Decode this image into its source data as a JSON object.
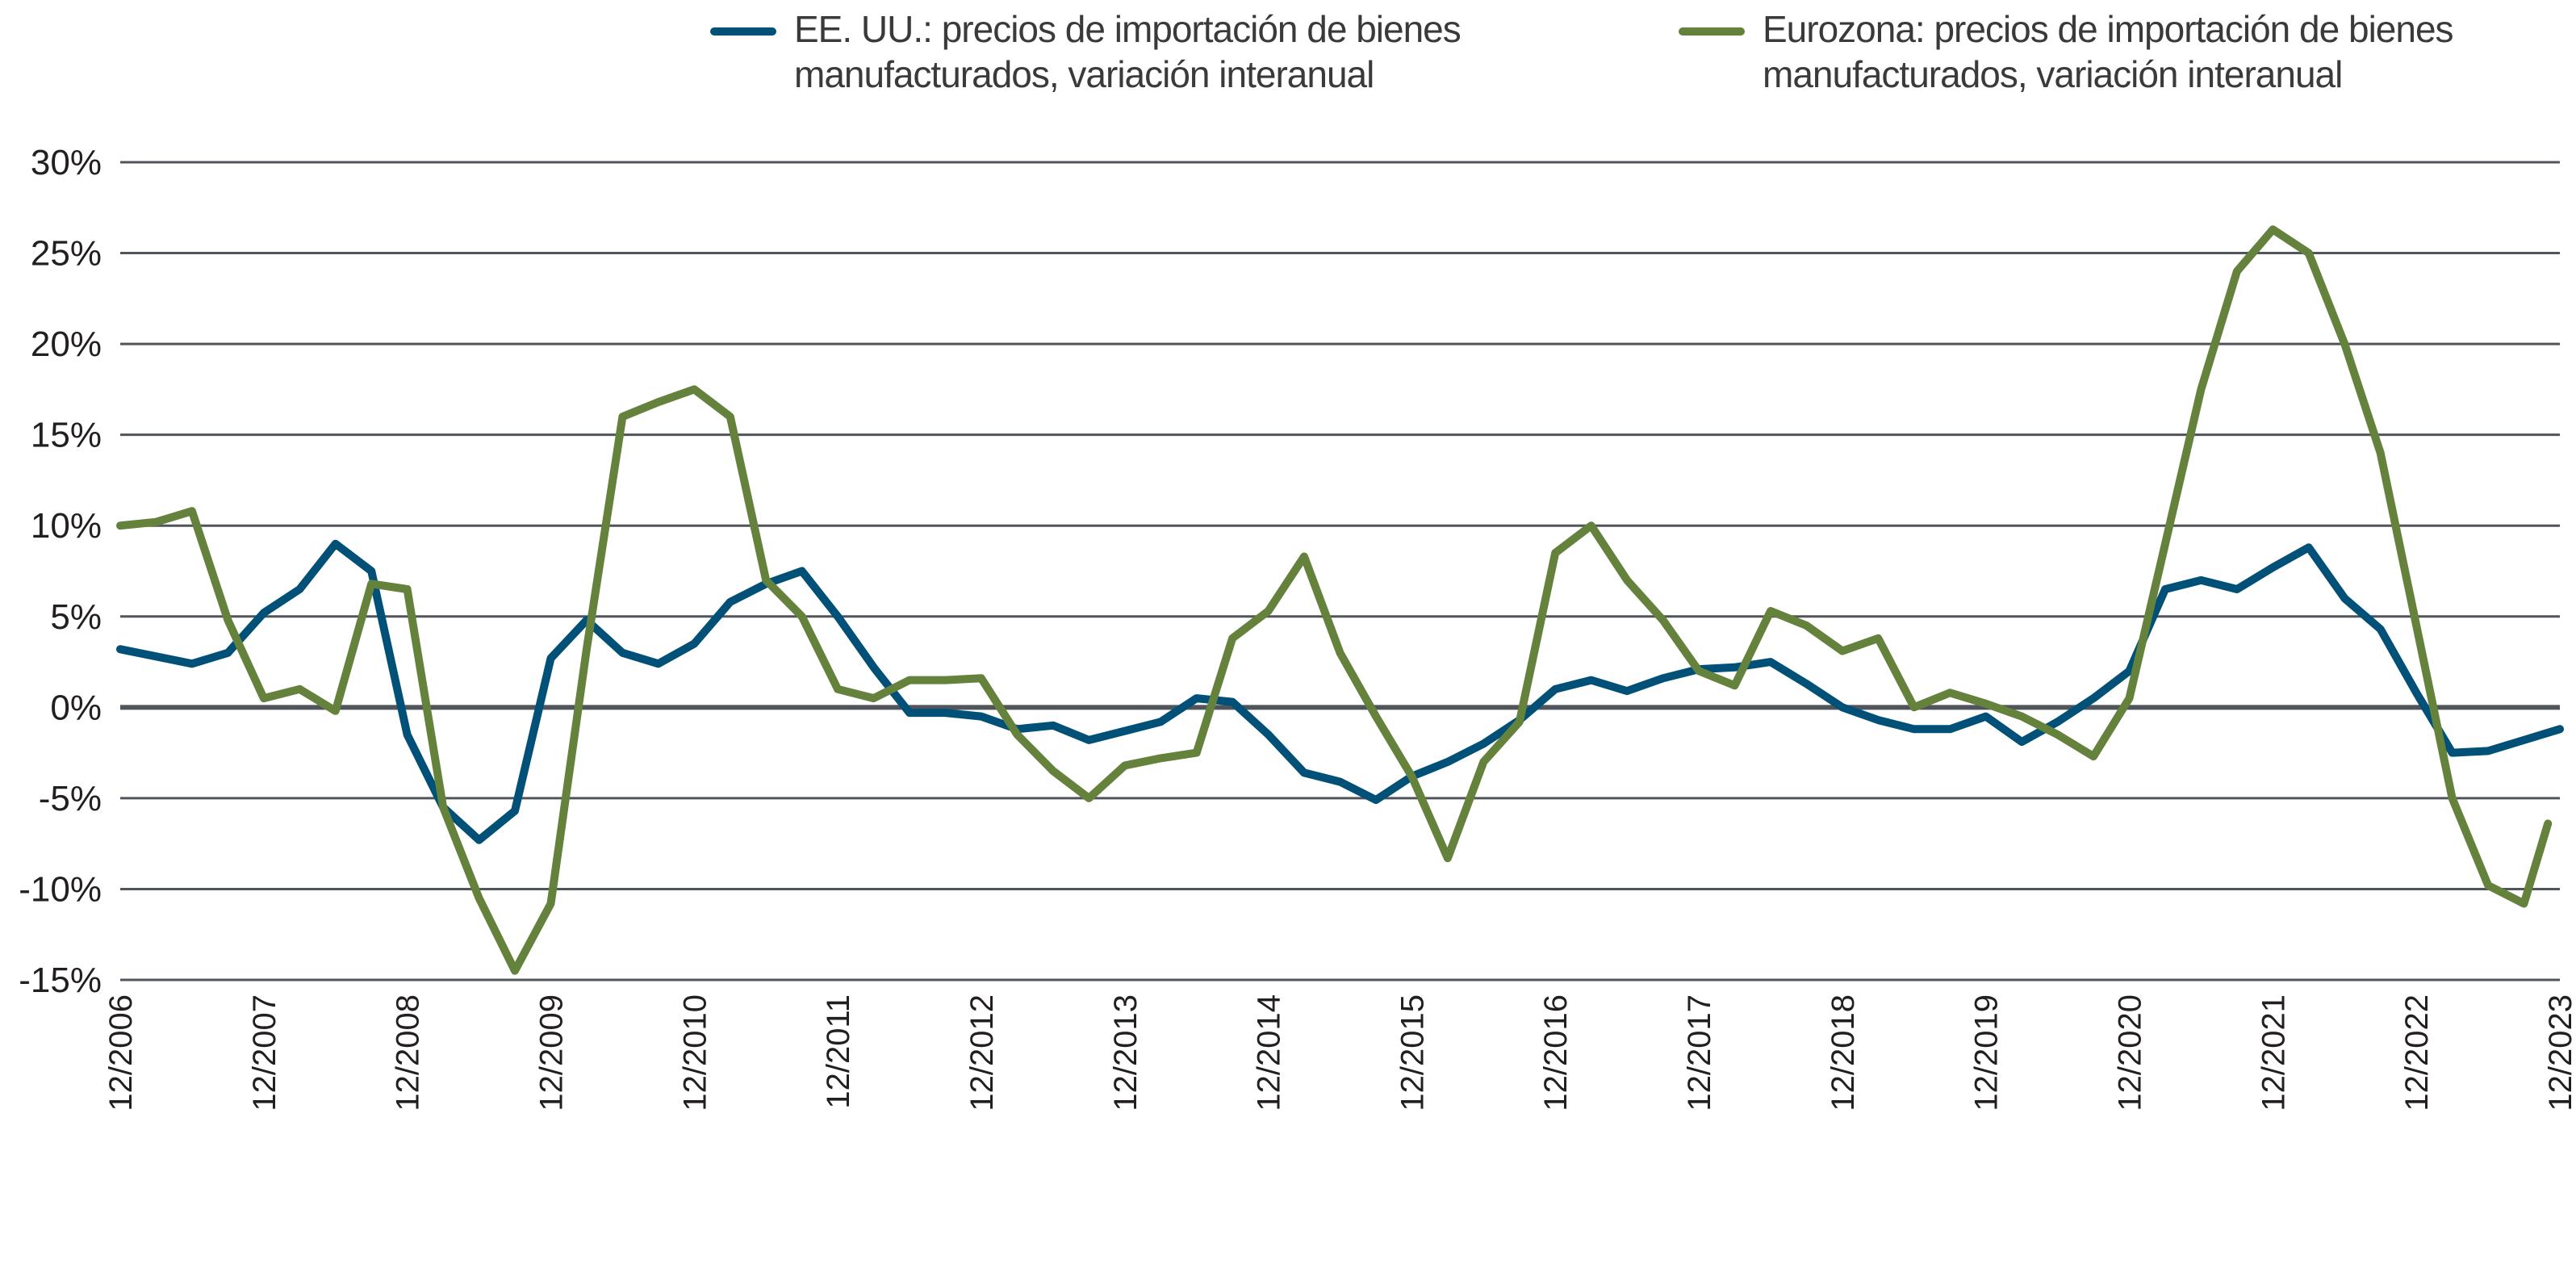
{
  "chart_data": {
    "type": "line",
    "title": "",
    "xlabel": "",
    "ylabel": "",
    "ylim": [
      -15,
      30
    ],
    "y_ticks": [
      "30%",
      "25%",
      "20%",
      "15%",
      "10%",
      "5%",
      "0%",
      "-5%",
      "-10%",
      "-15%"
    ],
    "y_tick_values": [
      30,
      25,
      20,
      15,
      10,
      5,
      0,
      -5,
      -10,
      -15
    ],
    "x_ticks": [
      "12/2006",
      "12/2007",
      "12/2008",
      "12/2009",
      "12/2010",
      "12/2011",
      "12/2012",
      "12/2013",
      "12/2014",
      "12/2015",
      "12/2016",
      "12/2017",
      "12/2018",
      "12/2019",
      "12/2020",
      "12/2021",
      "12/2022",
      "12/2023"
    ],
    "xlim": [
      "2006-12",
      "2023-12"
    ],
    "grid": "horizontal",
    "legend_position": "top",
    "series": [
      {
        "name": "EE. UU.: precios de importación de bienes manufacturados, variación interanual",
        "color": "#005078",
        "x": [
          "2006-12",
          "2007-03",
          "2007-06",
          "2007-09",
          "2007-12",
          "2008-03",
          "2008-06",
          "2008-09",
          "2008-12",
          "2009-03",
          "2009-06",
          "2009-09",
          "2009-12",
          "2010-03",
          "2010-06",
          "2010-09",
          "2010-12",
          "2011-03",
          "2011-06",
          "2011-09",
          "2011-12",
          "2012-03",
          "2012-06",
          "2012-09",
          "2012-12",
          "2013-03",
          "2013-06",
          "2013-09",
          "2013-12",
          "2014-03",
          "2014-06",
          "2014-09",
          "2014-12",
          "2015-03",
          "2015-06",
          "2015-09",
          "2015-12",
          "2016-03",
          "2016-06",
          "2016-09",
          "2016-12",
          "2017-03",
          "2017-06",
          "2017-09",
          "2017-12",
          "2018-03",
          "2018-06",
          "2018-09",
          "2018-12",
          "2019-03",
          "2019-06",
          "2019-09",
          "2019-12",
          "2020-03",
          "2020-06",
          "2020-09",
          "2020-12",
          "2021-03",
          "2021-06",
          "2021-09",
          "2021-12",
          "2022-03",
          "2022-06",
          "2022-09",
          "2022-12",
          "2023-03",
          "2023-06",
          "2023-09",
          "2023-12"
        ],
        "values": [
          3.2,
          2.8,
          2.4,
          3.0,
          5.2,
          6.5,
          9.0,
          7.5,
          -1.5,
          -5.5,
          -7.3,
          -5.7,
          2.7,
          4.8,
          3.0,
          2.4,
          3.5,
          5.8,
          6.8,
          7.5,
          5.0,
          2.2,
          -0.3,
          -0.3,
          -0.5,
          -1.2,
          -1.0,
          -1.8,
          -1.3,
          -0.8,
          0.5,
          0.3,
          -1.5,
          -3.6,
          -4.1,
          -5.1,
          -3.8,
          -3.0,
          -2.0,
          -0.7,
          1.0,
          1.5,
          0.9,
          1.6,
          2.1,
          2.2,
          2.5,
          1.3,
          0.0,
          -0.7,
          -1.2,
          -1.2,
          -0.5,
          -1.9,
          -0.8,
          0.5,
          2.0,
          6.5,
          7.0,
          6.5,
          7.7,
          8.8,
          6.0,
          4.3,
          0.8,
          -2.5,
          -2.4,
          -1.8,
          -1.2
        ]
      },
      {
        "name": "Eurozona: precios de importación de bienes manufacturados, variación interanual",
        "color": "#64823c",
        "x": [
          "2006-12",
          "2007-03",
          "2007-06",
          "2007-09",
          "2007-12",
          "2008-03",
          "2008-06",
          "2008-09",
          "2008-12",
          "2009-03",
          "2009-06",
          "2009-09",
          "2009-12",
          "2010-03",
          "2010-06",
          "2010-09",
          "2010-12",
          "2011-03",
          "2011-06",
          "2011-09",
          "2011-12",
          "2012-03",
          "2012-06",
          "2012-09",
          "2012-12",
          "2013-03",
          "2013-06",
          "2013-09",
          "2013-12",
          "2014-03",
          "2014-06",
          "2014-09",
          "2014-12",
          "2015-03",
          "2015-06",
          "2015-09",
          "2015-12",
          "2016-03",
          "2016-06",
          "2016-09",
          "2016-12",
          "2017-03",
          "2017-06",
          "2017-09",
          "2017-12",
          "2018-03",
          "2018-06",
          "2018-09",
          "2018-12",
          "2019-03",
          "2019-06",
          "2019-09",
          "2019-12",
          "2020-03",
          "2020-06",
          "2020-09",
          "2020-12",
          "2021-03",
          "2021-06",
          "2021-09",
          "2021-12",
          "2022-03",
          "2022-06",
          "2022-09",
          "2022-12",
          "2023-03",
          "2023-06",
          "2023-09",
          "2023-11"
        ],
        "values": [
          10.0,
          10.2,
          10.8,
          4.8,
          0.5,
          1.0,
          -0.2,
          6.8,
          6.5,
          -5.5,
          -10.5,
          -14.5,
          -10.8,
          3.2,
          16.0,
          16.8,
          17.5,
          16.0,
          7.0,
          5.0,
          1.0,
          0.5,
          1.5,
          1.5,
          1.6,
          -1.5,
          -3.5,
          -5.0,
          -3.2,
          -2.8,
          -2.5,
          3.8,
          5.3,
          8.3,
          3.0,
          -0.5,
          -3.8,
          -8.3,
          -3.0,
          -0.8,
          8.5,
          10.0,
          7.0,
          4.8,
          2.0,
          1.2,
          5.3,
          4.5,
          3.1,
          3.8,
          0.0,
          0.8,
          0.2,
          -0.5,
          -1.5,
          -2.7,
          0.5,
          9.0,
          17.5,
          24.0,
          26.3,
          25.0,
          20.0,
          14.0,
          4.5,
          -5.0,
          -9.8,
          -10.8,
          -6.4
        ]
      }
    ]
  }
}
